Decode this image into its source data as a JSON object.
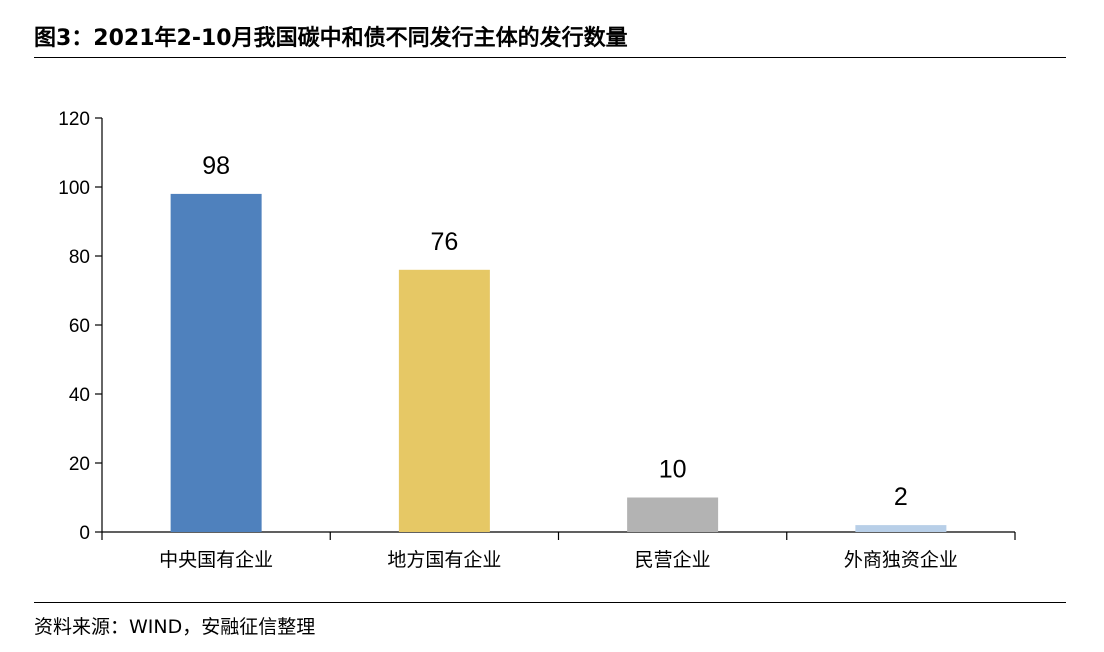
{
  "header": {
    "title": "图3：2021年2-10月我国碳中和债不同发行主体的发行数量"
  },
  "footer": {
    "source": "资料来源：WIND，安融征信整理"
  },
  "chart_data": {
    "type": "bar",
    "categories": [
      "中央国有企业",
      "地方国有企业",
      "民营企业",
      "外商独资企业"
    ],
    "values": [
      98,
      76,
      10,
      2
    ],
    "data_labels": [
      "98",
      "76",
      "10",
      "2"
    ],
    "colors": [
      "#4f81bd",
      "#e6c865",
      "#b3b3b3",
      "#b8cfe8"
    ],
    "ylim": [
      0,
      120
    ],
    "yticks": [
      0,
      20,
      40,
      60,
      80,
      100,
      120
    ],
    "ytick_labels": [
      "0",
      "20",
      "40",
      "60",
      "80",
      "100",
      "120"
    ],
    "title": "",
    "xlabel": "",
    "ylabel": "",
    "grid": false
  }
}
